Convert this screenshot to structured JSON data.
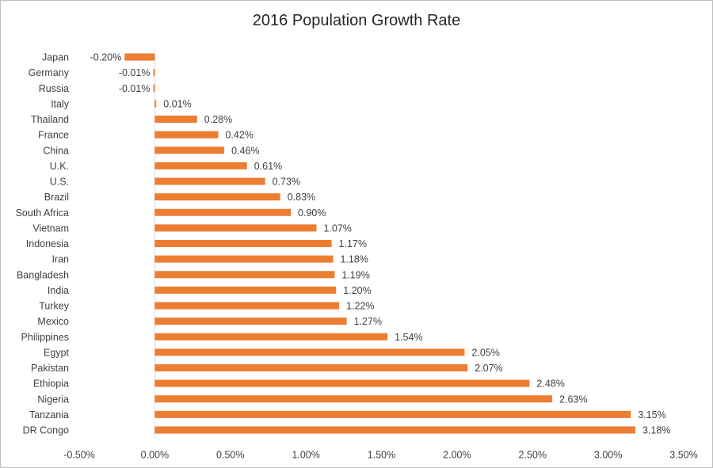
{
  "chart_data": {
    "type": "bar",
    "orientation": "horizontal",
    "title": "2016 Population Growth Rate",
    "xlabel": "",
    "ylabel": "",
    "xlim": [
      -0.5,
      3.5
    ],
    "x_ticks": [
      -0.5,
      0.0,
      0.5,
      1.0,
      1.5,
      2.0,
      2.5,
      3.0,
      3.5
    ],
    "x_tick_labels": [
      "-0.50%",
      "0.00%",
      "0.50%",
      "1.00%",
      "1.50%",
      "2.00%",
      "2.50%",
      "3.00%",
      "3.50%"
    ],
    "grid": false,
    "bar_color": "#ED7D31",
    "categories": [
      "Japan",
      "Germany",
      "Russia",
      "Italy",
      "Thailand",
      "France",
      "China",
      "U.K.",
      "U.S.",
      "Brazil",
      "South Africa",
      "Vietnam",
      "Indonesia",
      "Iran",
      "Bangladesh",
      "India",
      "Turkey",
      "Mexico",
      "Philippines",
      "Egypt",
      "Pakistan",
      "Ethiopia",
      "Nigeria",
      "Tanzania",
      "DR Congo"
    ],
    "values": [
      -0.2,
      -0.01,
      -0.01,
      0.01,
      0.28,
      0.42,
      0.46,
      0.61,
      0.73,
      0.83,
      0.9,
      1.07,
      1.17,
      1.18,
      1.19,
      1.2,
      1.22,
      1.27,
      1.54,
      2.05,
      2.07,
      2.48,
      2.63,
      3.15,
      3.18
    ],
    "value_labels": [
      "-0.20%",
      "-0.01%",
      "-0.01%",
      "0.01%",
      "0.28%",
      "0.42%",
      "0.46%",
      "0.61%",
      "0.73%",
      "0.83%",
      "0.90%",
      "1.07%",
      "1.17%",
      "1.18%",
      "1.19%",
      "1.20%",
      "1.22%",
      "1.27%",
      "1.54%",
      "2.05%",
      "2.07%",
      "2.48%",
      "2.63%",
      "3.15%",
      "3.18%"
    ]
  }
}
